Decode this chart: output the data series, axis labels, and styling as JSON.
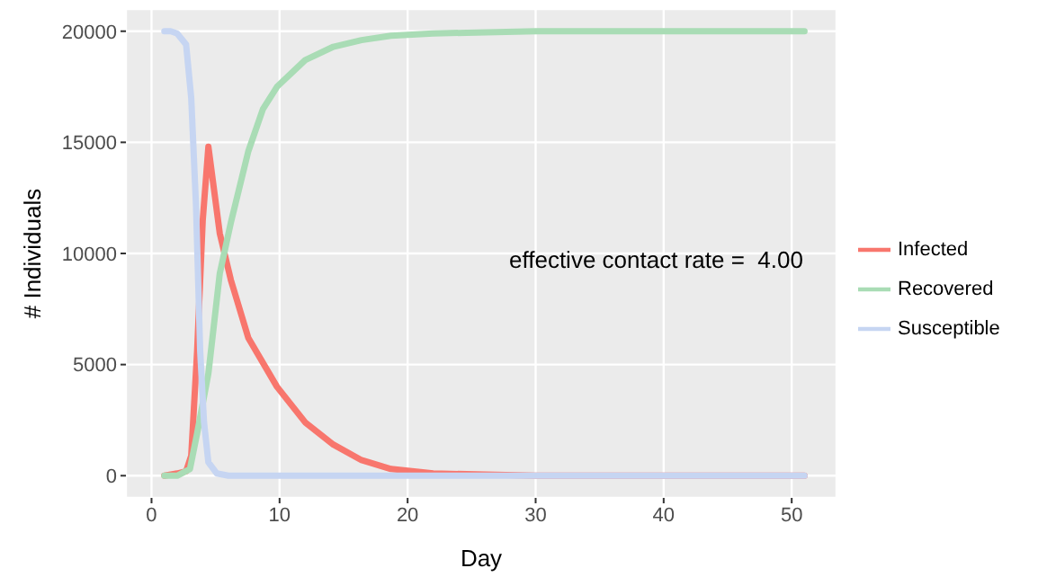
{
  "chart_data": {
    "type": "line",
    "xlabel": "Day",
    "ylabel": "# Individuals",
    "xlim": [
      -2,
      53.5
    ],
    "ylim": [
      -1000,
      21000
    ],
    "xticks": [
      0,
      10,
      20,
      30,
      40,
      50
    ],
    "yticks": [
      0,
      5000,
      10000,
      15000,
      20000
    ],
    "grid": true,
    "legend": "right",
    "marker": "none",
    "line_style": "solid",
    "annotations": [
      "effective contact rate =  4.00"
    ],
    "series": [
      {
        "name": "Infected",
        "color": "#f8766d",
        "x": [
          1,
          2,
          2.7,
          3.1,
          3.56,
          4,
          4.44,
          5.33,
          6.2,
          7.56,
          9.8,
          12,
          14.2,
          16.4,
          18.7,
          22,
          30,
          40,
          51
        ],
        "values": [
          0,
          100,
          200,
          900,
          5600,
          11500,
          14800,
          10900,
          8800,
          6200,
          4000,
          2400,
          1400,
          700,
          300,
          100,
          0,
          0,
          0
        ]
      },
      {
        "name": "Recovered",
        "color": "#a9dcb5",
        "x": [
          1,
          2,
          3,
          3.56,
          4.44,
          5.33,
          6.2,
          7.56,
          8.7,
          9.8,
          12,
          14.2,
          16.4,
          18.7,
          22,
          30,
          40,
          51
        ],
        "values": [
          0,
          0,
          300,
          1900,
          4600,
          9100,
          11400,
          14600,
          16500,
          17500,
          18700,
          19300,
          19600,
          19800,
          19900,
          20000,
          20000,
          20000
        ]
      },
      {
        "name": "Susceptible",
        "color": "#c6d5f2",
        "x": [
          1,
          1.5,
          2,
          2.7,
          3.1,
          3.47,
          3.8,
          4.1,
          4.44,
          5.1,
          6,
          10,
          20,
          30,
          40,
          51
        ],
        "values": [
          20000,
          20000,
          19900,
          19400,
          17000,
          12200,
          5600,
          2400,
          600,
          100,
          0,
          0,
          0,
          0,
          0,
          0
        ]
      }
    ]
  }
}
